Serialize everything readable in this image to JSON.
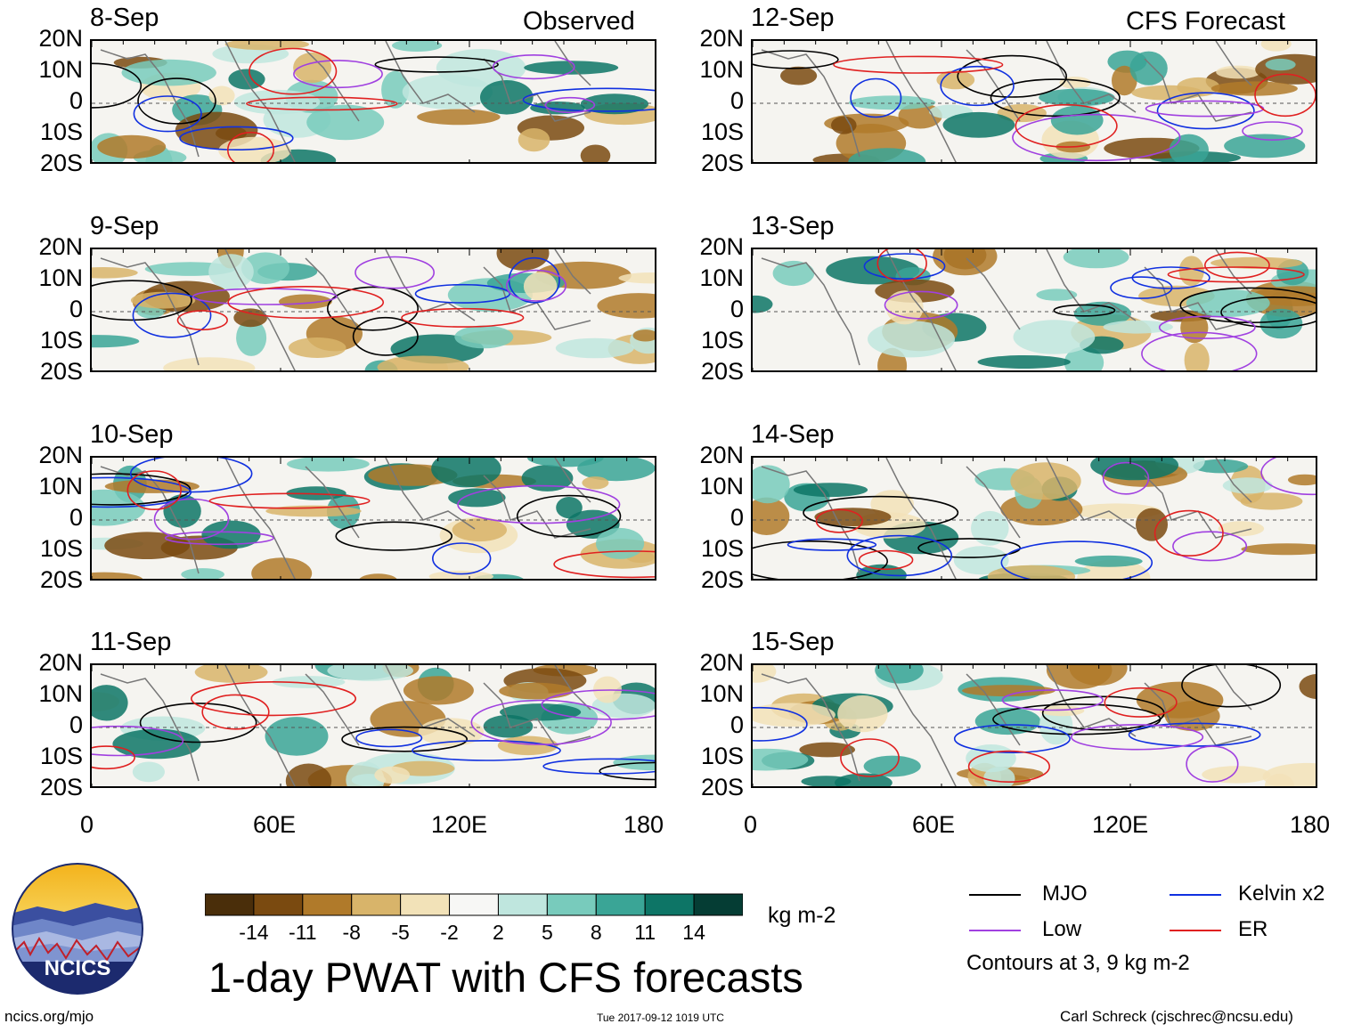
{
  "header": {
    "left_tag": "Observed",
    "right_tag": "CFS Forecast"
  },
  "axes": {
    "y_labels": [
      "20N",
      "10N",
      "0",
      "10S",
      "20S"
    ],
    "x_labels": [
      "0",
      "60E",
      "120E",
      "180"
    ]
  },
  "panels": [
    {
      "date": "8-Sep",
      "column": "observed"
    },
    {
      "date": "9-Sep",
      "column": "observed"
    },
    {
      "date": "10-Sep",
      "column": "observed"
    },
    {
      "date": "11-Sep",
      "column": "observed"
    },
    {
      "date": "12-Sep",
      "column": "forecast"
    },
    {
      "date": "13-Sep",
      "column": "forecast"
    },
    {
      "date": "14-Sep",
      "column": "forecast"
    },
    {
      "date": "15-Sep",
      "column": "forecast"
    }
  ],
  "colorbar": {
    "ticks": [
      "-14",
      "-11",
      "-8",
      "-5",
      "-2",
      "2",
      "5",
      "8",
      "11",
      "14"
    ],
    "colors": [
      "#4a2e0a",
      "#7a4a10",
      "#b07a2a",
      "#d8b46a",
      "#f2e2b8",
      "#f7f7f5",
      "#bfe6de",
      "#78cbbc",
      "#3aa596",
      "#0d7566",
      "#053d34"
    ],
    "units": "kg m-2"
  },
  "title": "1-day PWAT with CFS forecasts",
  "legend": {
    "items": [
      {
        "label": "MJO",
        "color": "#000000"
      },
      {
        "label": "Kelvin x2",
        "color": "#1030e0"
      },
      {
        "label": "Low",
        "color": "#a040e0"
      },
      {
        "label": "ER",
        "color": "#e02020"
      }
    ],
    "note": "Contours at 3, 9 kg m-2"
  },
  "logo": {
    "text": "NCICS"
  },
  "footer": {
    "left": "ncics.org/mjo",
    "center": "Tue 2017-09-12 1019 UTC",
    "right": "Carl Schreck (cjschrec@ncsu.edu)"
  }
}
